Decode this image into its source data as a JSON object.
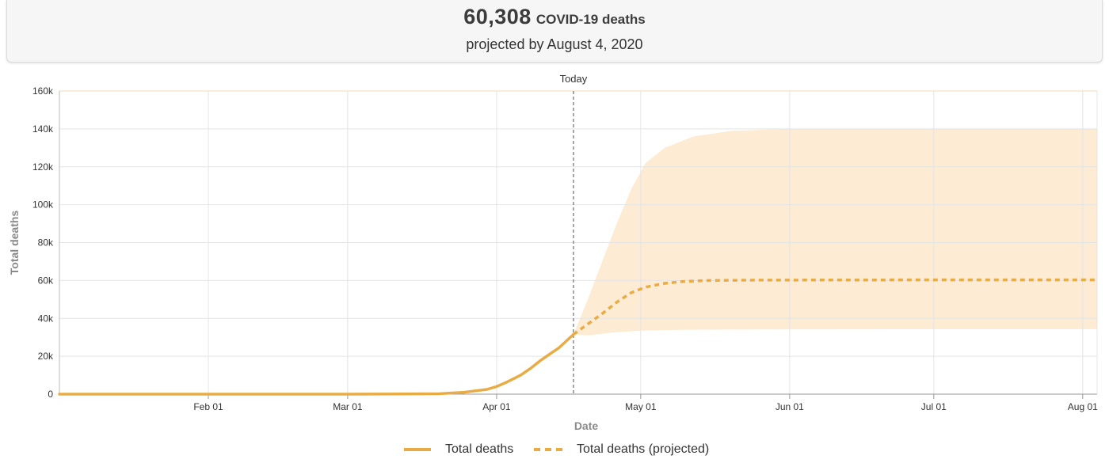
{
  "summary": {
    "count": "60,308",
    "unit": "COVID-19 deaths",
    "subtitle": "projected by August 4, 2020"
  },
  "colors": {
    "line": "#e9ac45",
    "band": "#fdebd3",
    "grid": "#e4e4e4",
    "today_line": "#777777"
  },
  "chart_data": {
    "type": "line",
    "title": "",
    "xlabel": "Date",
    "ylabel": "Total deaths",
    "x_range": [
      "2020-01-01",
      "2020-08-04"
    ],
    "ylim": [
      0,
      160000
    ],
    "y_ticks": [
      0,
      20000,
      40000,
      60000,
      80000,
      100000,
      120000,
      140000,
      160000
    ],
    "y_tick_labels": [
      "0",
      "20k",
      "40k",
      "60k",
      "80k",
      "100k",
      "120k",
      "140k",
      "160k"
    ],
    "x_ticks": [
      "2020-02-01",
      "2020-03-01",
      "2020-04-01",
      "2020-05-01",
      "2020-06-01",
      "2020-07-01",
      "2020-08-01"
    ],
    "x_tick_labels": [
      "Feb 01",
      "Mar 01",
      "Apr 01",
      "May 01",
      "Jun 01",
      "Jul 01",
      "Aug 01"
    ],
    "grid": true,
    "legend_position": "bottom-center",
    "today": {
      "label": "Today",
      "date": "2020-04-17"
    },
    "series": [
      {
        "name": "Total deaths",
        "style": "solid",
        "points": [
          [
            "2020-01-01",
            0
          ],
          [
            "2020-03-01",
            0
          ],
          [
            "2020-03-20",
            200
          ],
          [
            "2020-03-25",
            900
          ],
          [
            "2020-03-30",
            2500
          ],
          [
            "2020-04-01",
            4000
          ],
          [
            "2020-04-03",
            6200
          ],
          [
            "2020-04-06",
            10000
          ],
          [
            "2020-04-08",
            13500
          ],
          [
            "2020-04-10",
            17500
          ],
          [
            "2020-04-12",
            21000
          ],
          [
            "2020-04-14",
            24500
          ],
          [
            "2020-04-17",
            31500
          ]
        ]
      },
      {
        "name": "Total deaths (projected)",
        "style": "dashed",
        "points": [
          [
            "2020-04-17",
            31500
          ],
          [
            "2020-04-20",
            37000
          ],
          [
            "2020-04-23",
            42500
          ],
          [
            "2020-04-26",
            48500
          ],
          [
            "2020-04-29",
            53500
          ],
          [
            "2020-05-02",
            56500
          ],
          [
            "2020-05-06",
            58500
          ],
          [
            "2020-05-10",
            59500
          ],
          [
            "2020-05-15",
            60000
          ],
          [
            "2020-05-25",
            60200
          ],
          [
            "2020-06-15",
            60300
          ],
          [
            "2020-08-04",
            60308
          ]
        ]
      }
    ],
    "uncertainty_band": {
      "upper": [
        [
          "2020-04-17",
          31500
        ],
        [
          "2020-04-20",
          50000
        ],
        [
          "2020-04-23",
          70000
        ],
        [
          "2020-04-26",
          90000
        ],
        [
          "2020-04-29",
          108000
        ],
        [
          "2020-05-02",
          122000
        ],
        [
          "2020-05-06",
          130000
        ],
        [
          "2020-05-12",
          136000
        ],
        [
          "2020-05-20",
          139000
        ],
        [
          "2020-06-01",
          140000
        ],
        [
          "2020-08-04",
          140000
        ]
      ],
      "lower": [
        [
          "2020-04-17",
          31500
        ],
        [
          "2020-04-20",
          31000
        ],
        [
          "2020-04-25",
          32500
        ],
        [
          "2020-05-01",
          33500
        ],
        [
          "2020-05-10",
          34000
        ],
        [
          "2020-06-01",
          34200
        ],
        [
          "2020-08-04",
          34300
        ]
      ]
    }
  }
}
